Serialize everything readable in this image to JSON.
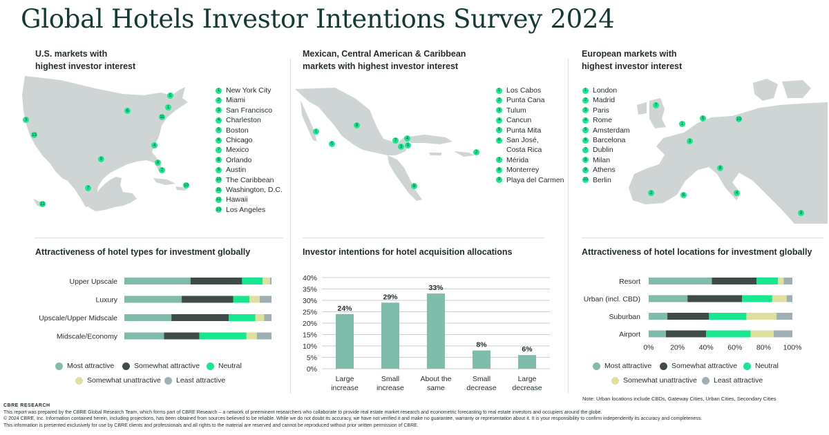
{
  "title": "Global Hotels Investor Intentions Survey 2024",
  "colors": {
    "most_attractive": "#7fbcab",
    "somewhat_attractive": "#3f4b49",
    "neutral": "#17e88f",
    "somewhat_unattractive": "#dfdf9f",
    "least_attractive": "#9eb0b3",
    "bar": "#7fbcab",
    "badge": "#17e88f",
    "map_land": "#cfd4d4"
  },
  "us_markets": {
    "heading_line1": "U.S. markets with",
    "heading_line2": "highest investor interest",
    "cities": [
      {
        "n": "1",
        "name": "New York City"
      },
      {
        "n": "2",
        "name": "Miami"
      },
      {
        "n": "3",
        "name": "San Francisco"
      },
      {
        "n": "4",
        "name": "Charleston"
      },
      {
        "n": "5",
        "name": "Boston"
      },
      {
        "n": "6",
        "name": "Chicago"
      },
      {
        "n": "7",
        "name": "Mexico"
      },
      {
        "n": "8",
        "name": "Orlando"
      },
      {
        "n": "9",
        "name": "Austin"
      },
      {
        "n": "10",
        "name": "The Caribbean"
      },
      {
        "n": "11",
        "name": "Washington, D.C."
      },
      {
        "n": "12",
        "name": "Hawaii"
      },
      {
        "n": "13",
        "name": "Los Angeles"
      }
    ]
  },
  "mx_markets": {
    "heading_line1": "Mexican, Central American & Caribbean",
    "heading_line2": "markets with highest investor interest",
    "cities": [
      {
        "n": "1",
        "name": "Los Cabos"
      },
      {
        "n": "2",
        "name": "Punta Cana"
      },
      {
        "n": "3",
        "name": "Tulum"
      },
      {
        "n": "4",
        "name": "Cancun"
      },
      {
        "n": "5",
        "name": "Punta Mita"
      },
      {
        "n": "6",
        "name": "San José,"
      },
      {
        "n": "",
        "name": "Costa Rica"
      },
      {
        "n": "7",
        "name": "Mérida"
      },
      {
        "n": "8",
        "name": "Monterrey"
      },
      {
        "n": "9",
        "name": "Playa del Carmen"
      }
    ]
  },
  "eu_markets": {
    "heading_line1": "European markets with",
    "heading_line2": "highest investor interest",
    "cities": [
      {
        "n": "1",
        "name": "London"
      },
      {
        "n": "2",
        "name": "Madrid"
      },
      {
        "n": "3",
        "name": "Paris"
      },
      {
        "n": "4",
        "name": "Rome"
      },
      {
        "n": "5",
        "name": "Amsterdam"
      },
      {
        "n": "6",
        "name": "Barcelona"
      },
      {
        "n": "7",
        "name": "Dublin"
      },
      {
        "n": "8",
        "name": "Milan"
      },
      {
        "n": "9",
        "name": "Athens"
      },
      {
        "n": "10",
        "name": "Berlin"
      }
    ]
  },
  "legend_labels": {
    "most": "Most attractive",
    "somewhat": "Somewhat attractive",
    "neutral": "Neutral",
    "unattractive": "Somewhat unattractive",
    "least": "Least attractive"
  },
  "note": "Note: Urban locations include CBDs, Gateway Cities, Urban Cities, Secondary Cities",
  "footer": {
    "brand": "CBRE  RESEARCH",
    "line1": "This report was prepared by the CBRE Global Research Team, which forms part of CBRE Research – a network of preeminent researchers who collaborate to provide real estate market research and econometric forecasting to real estate investors and occupiers around the globe.",
    "line2": "© 2024 CBRE, Inc. Information contained herein, including projections, has been obtained from sources believed to be reliable. While we do not doubt its accuracy, we have not verified it and make no guarantee, warranty or representation about it. It is your responsibility to confirm independently its accuracy and completeness.",
    "line3": "This information is presented exclusively for use by CBRE clients and professionals and all rights to the material are reserved and cannot be reproduced without prior written permission of CBRE."
  },
  "chart_data": [
    {
      "type": "bar",
      "orientation": "horizontal-stacked",
      "title": "Attractiveness of hotel types for investment globally",
      "categories": [
        "Upper Upscale",
        "Luxury",
        "Upscale/Upper Midscale",
        "Midscale/Economy"
      ],
      "series": [
        {
          "name": "Most attractive",
          "values": [
            45,
            39,
            32,
            27
          ]
        },
        {
          "name": "Somewhat attractive",
          "values": [
            35,
            35,
            39,
            24
          ]
        },
        {
          "name": "Neutral",
          "values": [
            14,
            11,
            18,
            32
          ]
        },
        {
          "name": "Somewhat unattractive",
          "values": [
            5,
            7,
            6,
            7
          ]
        },
        {
          "name": "Least attractive",
          "values": [
            1,
            8,
            5,
            10
          ]
        }
      ],
      "legend": "bottom"
    },
    {
      "type": "bar",
      "title": "Investor intentions for hotel acquisition allocations",
      "categories": [
        "Large increase",
        "Small increase",
        "About the same",
        "Small decrease",
        "Large decrease"
      ],
      "values": [
        24,
        29,
        33,
        8,
        6
      ],
      "data_labels": [
        "24%",
        "29%",
        "33%",
        "8%",
        "6%"
      ],
      "ylim": [
        0,
        40
      ],
      "yticks": [
        "0%",
        "5%",
        "10%",
        "15%",
        "20%",
        "25%",
        "30%",
        "35%",
        "40%"
      ],
      "grid": true
    },
    {
      "type": "bar",
      "orientation": "horizontal-stacked",
      "title": "Attractiveness of hotel locations for investment globally",
      "categories": [
        "Resort",
        "Urban (incl. CBD)",
        "Suburban",
        "Airport"
      ],
      "series": [
        {
          "name": "Most attractive",
          "values": [
            44,
            27,
            13,
            12
          ]
        },
        {
          "name": "Somewhat attractive",
          "values": [
            31,
            38,
            29,
            28
          ]
        },
        {
          "name": "Neutral",
          "values": [
            15,
            21,
            26,
            31
          ]
        },
        {
          "name": "Somewhat unattractive",
          "values": [
            4,
            10,
            21,
            16
          ]
        },
        {
          "name": "Least attractive",
          "values": [
            6,
            4,
            11,
            13
          ]
        }
      ],
      "xlim": [
        0,
        100
      ],
      "xticks": [
        "0%",
        "20%",
        "40%",
        "60%",
        "80%",
        "100%"
      ],
      "legend": "bottom"
    }
  ]
}
